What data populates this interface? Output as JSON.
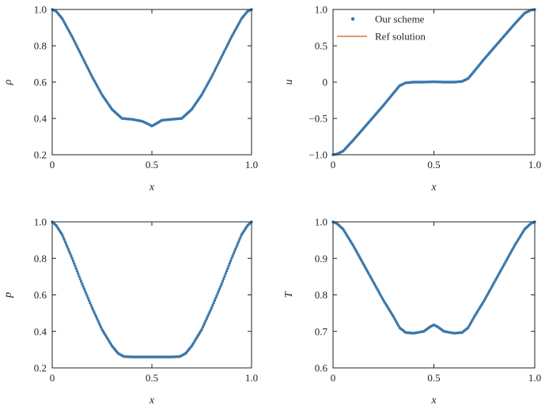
{
  "colors": {
    "scheme": "#3a78ad",
    "reference": "#e0733a",
    "axes": "#222222"
  },
  "legend": {
    "placement": "top-left",
    "entries": [
      {
        "label": "Our scheme",
        "marker": "dot"
      },
      {
        "label": "Ref solution",
        "marker": "line"
      }
    ]
  },
  "chart_data": [
    {
      "type": "scatter",
      "id": "rho",
      "title": "",
      "xlabel": "x",
      "ylabel": "ρ",
      "xlim": [
        0,
        1
      ],
      "ylim": [
        0.2,
        1.0
      ],
      "xticks": [
        0,
        0.5,
        1.0
      ],
      "xtick_labels": [
        "0",
        "0.5",
        "1.0"
      ],
      "yticks": [
        0.2,
        0.4,
        0.6,
        0.8,
        1.0
      ],
      "ytick_labels": [
        "0.2",
        "0.4",
        "0.6",
        "0.8",
        "1.0"
      ],
      "grid": false,
      "series": [
        {
          "name": "Our scheme",
          "kind": "points",
          "x": [
            0,
            0.02,
            0.05,
            0.1,
            0.15,
            0.2,
            0.25,
            0.3,
            0.35,
            0.4,
            0.45,
            0.48,
            0.5,
            0.52,
            0.55,
            0.6,
            0.65,
            0.7,
            0.75,
            0.8,
            0.85,
            0.9,
            0.95,
            0.98,
            1.0
          ],
          "y": [
            1.0,
            0.99,
            0.95,
            0.85,
            0.74,
            0.63,
            0.53,
            0.45,
            0.4,
            0.395,
            0.385,
            0.37,
            0.358,
            0.37,
            0.39,
            0.395,
            0.4,
            0.45,
            0.53,
            0.63,
            0.74,
            0.85,
            0.95,
            0.99,
            1.0
          ]
        },
        {
          "name": "Ref solution",
          "kind": "line",
          "x": [
            0,
            0.02,
            0.05,
            0.1,
            0.15,
            0.2,
            0.25,
            0.3,
            0.35,
            0.4,
            0.45,
            0.48,
            0.5,
            0.52,
            0.55,
            0.6,
            0.65,
            0.7,
            0.75,
            0.8,
            0.85,
            0.9,
            0.95,
            0.98,
            1.0
          ],
          "y": [
            1.0,
            0.99,
            0.95,
            0.85,
            0.74,
            0.63,
            0.53,
            0.45,
            0.4,
            0.395,
            0.385,
            0.37,
            0.358,
            0.37,
            0.39,
            0.395,
            0.4,
            0.45,
            0.53,
            0.63,
            0.74,
            0.85,
            0.95,
            0.99,
            1.0
          ]
        }
      ]
    },
    {
      "type": "scatter",
      "id": "u",
      "title": "",
      "xlabel": "x",
      "ylabel": "u",
      "xlim": [
        0,
        1
      ],
      "ylim": [
        -1.0,
        1.0
      ],
      "xticks": [
        0,
        0.5,
        1.0
      ],
      "xtick_labels": [
        "0",
        "0.5",
        "1.0"
      ],
      "yticks": [
        -1.0,
        -0.5,
        0,
        0.5,
        1.0
      ],
      "ytick_labels": [
        "−1.0",
        "−0.5",
        "0",
        "0.5",
        "1.0"
      ],
      "grid": false,
      "series": [
        {
          "name": "Our scheme",
          "kind": "points",
          "x": [
            0,
            0.02,
            0.05,
            0.1,
            0.15,
            0.2,
            0.25,
            0.3,
            0.33,
            0.36,
            0.4,
            0.45,
            0.5,
            0.55,
            0.6,
            0.64,
            0.67,
            0.7,
            0.75,
            0.8,
            0.85,
            0.9,
            0.95,
            0.98,
            1.0
          ],
          "y": [
            -1.0,
            -0.99,
            -0.95,
            -0.8,
            -0.64,
            -0.48,
            -0.32,
            -0.15,
            -0.05,
            -0.01,
            0,
            0,
            0.005,
            0,
            0,
            0.01,
            0.05,
            0.15,
            0.32,
            0.48,
            0.64,
            0.8,
            0.95,
            0.99,
            1.0
          ]
        },
        {
          "name": "Ref solution",
          "kind": "line",
          "x": [
            0,
            0.02,
            0.05,
            0.1,
            0.15,
            0.2,
            0.25,
            0.3,
            0.33,
            0.36,
            0.4,
            0.45,
            0.5,
            0.55,
            0.6,
            0.64,
            0.67,
            0.7,
            0.75,
            0.8,
            0.85,
            0.9,
            0.95,
            0.98,
            1.0
          ],
          "y": [
            -1.0,
            -0.99,
            -0.95,
            -0.81,
            -0.65,
            -0.49,
            -0.33,
            -0.16,
            -0.06,
            -0.015,
            0,
            0,
            0.005,
            0,
            0,
            0.015,
            0.06,
            0.16,
            0.33,
            0.49,
            0.65,
            0.81,
            0.95,
            0.99,
            1.0
          ]
        }
      ]
    },
    {
      "type": "scatter",
      "id": "p",
      "title": "",
      "xlabel": "x",
      "ylabel": "p",
      "xlim": [
        0,
        1
      ],
      "ylim": [
        0.2,
        1.0
      ],
      "xticks": [
        0,
        0.5,
        1.0
      ],
      "xtick_labels": [
        "0",
        "0.5",
        "1.0"
      ],
      "yticks": [
        0.2,
        0.4,
        0.6,
        0.8,
        1.0
      ],
      "ytick_labels": [
        "0.2",
        "0.4",
        "0.6",
        "0.8",
        "1.0"
      ],
      "grid": false,
      "series": [
        {
          "name": "Our scheme",
          "kind": "points",
          "x": [
            0,
            0.02,
            0.05,
            0.1,
            0.15,
            0.2,
            0.25,
            0.3,
            0.33,
            0.36,
            0.4,
            0.45,
            0.5,
            0.55,
            0.6,
            0.64,
            0.67,
            0.7,
            0.75,
            0.8,
            0.85,
            0.9,
            0.95,
            0.98,
            1.0
          ],
          "y": [
            1.0,
            0.98,
            0.93,
            0.8,
            0.66,
            0.53,
            0.41,
            0.32,
            0.28,
            0.262,
            0.26,
            0.26,
            0.26,
            0.26,
            0.26,
            0.262,
            0.28,
            0.32,
            0.41,
            0.53,
            0.66,
            0.8,
            0.93,
            0.98,
            1.0
          ]
        },
        {
          "name": "Ref solution",
          "kind": "line",
          "x": [
            0,
            0.02,
            0.05,
            0.1,
            0.15,
            0.2,
            0.25,
            0.3,
            0.33,
            0.36,
            0.4,
            0.45,
            0.5,
            0.55,
            0.6,
            0.64,
            0.67,
            0.7,
            0.75,
            0.8,
            0.85,
            0.9,
            0.95,
            0.98,
            1.0
          ],
          "y": [
            1.0,
            0.98,
            0.93,
            0.8,
            0.66,
            0.53,
            0.41,
            0.32,
            0.28,
            0.262,
            0.26,
            0.26,
            0.26,
            0.26,
            0.26,
            0.262,
            0.28,
            0.32,
            0.41,
            0.53,
            0.66,
            0.8,
            0.93,
            0.98,
            1.0
          ]
        }
      ]
    },
    {
      "type": "scatter",
      "id": "T",
      "title": "",
      "xlabel": "x",
      "ylabel": "T",
      "xlim": [
        0,
        1
      ],
      "ylim": [
        0.6,
        1.0
      ],
      "xticks": [
        0,
        0.5,
        1.0
      ],
      "xtick_labels": [
        "0",
        "0.5",
        "1.0"
      ],
      "yticks": [
        0.6,
        0.7,
        0.8,
        0.9,
        1.0
      ],
      "ytick_labels": [
        "0.6",
        "0.7",
        "0.8",
        "0.9",
        "1.0"
      ],
      "grid": false,
      "series": [
        {
          "name": "Our scheme",
          "kind": "points",
          "x": [
            0,
            0.02,
            0.05,
            0.1,
            0.15,
            0.2,
            0.25,
            0.3,
            0.33,
            0.36,
            0.4,
            0.45,
            0.48,
            0.5,
            0.52,
            0.55,
            0.6,
            0.64,
            0.67,
            0.7,
            0.75,
            0.8,
            0.85,
            0.9,
            0.95,
            0.98,
            1.0
          ],
          "y": [
            1.0,
            0.995,
            0.98,
            0.935,
            0.885,
            0.835,
            0.785,
            0.74,
            0.71,
            0.697,
            0.695,
            0.7,
            0.712,
            0.718,
            0.712,
            0.7,
            0.695,
            0.697,
            0.71,
            0.74,
            0.785,
            0.835,
            0.885,
            0.935,
            0.98,
            0.995,
            1.0
          ]
        },
        {
          "name": "Ref solution",
          "kind": "line",
          "x": [
            0,
            0.02,
            0.05,
            0.1,
            0.15,
            0.2,
            0.25,
            0.3,
            0.33,
            0.36,
            0.4,
            0.45,
            0.48,
            0.5,
            0.52,
            0.55,
            0.6,
            0.64,
            0.67,
            0.7,
            0.75,
            0.8,
            0.85,
            0.9,
            0.95,
            0.98,
            1.0
          ],
          "y": [
            1.0,
            0.995,
            0.98,
            0.935,
            0.885,
            0.835,
            0.785,
            0.74,
            0.708,
            0.695,
            0.693,
            0.7,
            0.712,
            0.718,
            0.712,
            0.7,
            0.693,
            0.695,
            0.708,
            0.74,
            0.785,
            0.835,
            0.885,
            0.935,
            0.98,
            0.995,
            1.0
          ]
        }
      ]
    }
  ]
}
